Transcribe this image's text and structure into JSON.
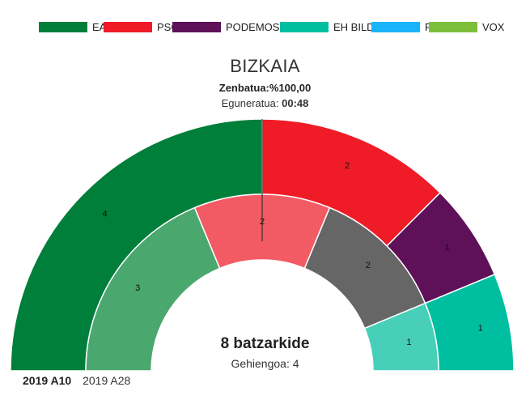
{
  "legend": [
    {
      "label": "EAJ",
      "color": "#007f3a"
    },
    {
      "label": "PSOE",
      "color": "#ef1c27"
    },
    {
      "label": "PODEMOS-IU",
      "color": "#5e1058"
    },
    {
      "label": "EH BILDU",
      "color": "#00bfa0"
    },
    {
      "label": "PP",
      "color": "#1ab4fa"
    },
    {
      "label": "VOX",
      "color": "#7dbf3b"
    }
  ],
  "header": {
    "title": "BIZKAIA",
    "counted_label": "Zenbatua:",
    "counted_value": "%100,00",
    "updated_label": "Eguneratua:",
    "updated_value": "00:48"
  },
  "chart_data": {
    "type": "pie",
    "rings": [
      {
        "ring": "outer",
        "year": "2019 A10",
        "total": 8,
        "slices": [
          {
            "party": "EAJ",
            "value": 4,
            "color": "#007f3a"
          },
          {
            "party": "PSOE",
            "value": 2,
            "color": "#ef1c27"
          },
          {
            "party": "PODEMOS-IU",
            "value": 1,
            "color": "#5e1058"
          },
          {
            "party": "EH BILDU",
            "value": 1,
            "color": "#00bfa0"
          }
        ]
      },
      {
        "ring": "inner",
        "year": "2019 A28",
        "total": 8,
        "slices": [
          {
            "party": "EAJ",
            "value": 3,
            "color": "#4aa76e"
          },
          {
            "party": "PSOE",
            "value": 2,
            "color": "#f25a64"
          },
          {
            "party": "",
            "value": 2,
            "color": "#666666"
          },
          {
            "party": "EH BILDU",
            "value": 1,
            "color": "#47cfb9"
          }
        ]
      }
    ]
  },
  "summary": {
    "seats_text": "8 batzarkide",
    "majority_text": "Gehiengoa: 4"
  },
  "years": [
    {
      "label": "2019 A10",
      "active": true
    },
    {
      "label": "2019 A28",
      "active": false
    }
  ]
}
